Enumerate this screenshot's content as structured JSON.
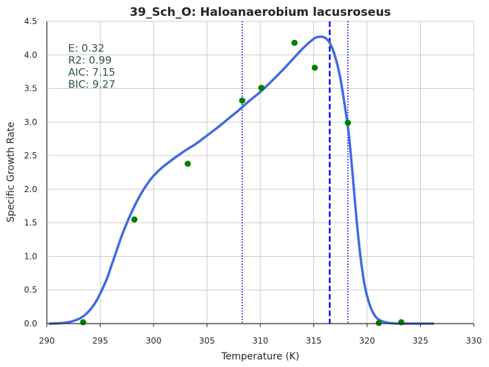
{
  "chart_data": {
    "type": "scatter",
    "title": "39_Sch_O: Haloanaerobium lacusroseus",
    "xlabel": "Temperature (K)",
    "ylabel": "Specific Growth Rate",
    "xlim": [
      290,
      330
    ],
    "ylim": [
      0,
      4.5
    ],
    "xticks": [
      "290",
      "295",
      "300",
      "305",
      "310",
      "315",
      "320",
      "325",
      "330"
    ],
    "yticks": [
      "0.0",
      "0.5",
      "1.0",
      "1.5",
      "2.0",
      "2.5",
      "3.0",
      "3.5",
      "4.0",
      "4.5"
    ],
    "grid": true,
    "stats": [
      "E:  0.32",
      "R2:  0.99",
      "AIC: 7.15",
      "BIC: 9.27"
    ],
    "colors": {
      "fit": "#4169e1",
      "points": "#008000",
      "vlines": "#0000ff",
      "annotation": "#2f4f4f",
      "grid": "#cccccc"
    },
    "observed": {
      "x": [
        293.4,
        298.2,
        303.2,
        308.3,
        310.1,
        313.2,
        315.1,
        318.2,
        321.1,
        323.2
      ],
      "y": [
        0.02,
        1.55,
        2.38,
        3.32,
        3.51,
        4.18,
        3.81,
        2.99,
        0.01,
        0.02
      ]
    },
    "fit_curve": {
      "x": [
        290.3,
        291.5,
        292.5,
        293.5,
        294.5,
        295.5,
        296.0,
        296.5,
        297.0,
        297.5,
        298.0,
        298.5,
        299.0,
        299.5,
        300.0,
        300.5,
        301.0,
        302.0,
        303.0,
        304.0,
        305.0,
        306.0,
        307.0,
        308.0,
        309.0,
        310.0,
        311.0,
        312.0,
        313.0,
        314.0,
        315.0,
        315.5,
        316.0,
        316.5,
        317.0,
        317.5,
        318.0,
        318.3,
        318.6,
        318.9,
        319.2,
        319.5,
        319.8,
        320.2,
        320.6,
        321.0,
        321.5,
        322.0,
        323.0,
        324.0,
        325.0,
        326.2
      ],
      "y": [
        0.0,
        0.01,
        0.04,
        0.12,
        0.3,
        0.62,
        0.84,
        1.07,
        1.3,
        1.5,
        1.68,
        1.84,
        1.98,
        2.1,
        2.2,
        2.28,
        2.35,
        2.47,
        2.58,
        2.68,
        2.8,
        2.92,
        3.05,
        3.18,
        3.32,
        3.45,
        3.6,
        3.76,
        3.93,
        4.1,
        4.24,
        4.27,
        4.26,
        4.18,
        3.98,
        3.65,
        3.15,
        2.8,
        2.3,
        1.75,
        1.25,
        0.85,
        0.55,
        0.3,
        0.15,
        0.07,
        0.03,
        0.01,
        0.0,
        0.0,
        0.0,
        0.0
      ]
    },
    "vlines": [
      {
        "x": 308.3,
        "style": "dotted"
      },
      {
        "x": 316.5,
        "style": "dashed"
      },
      {
        "x": 318.2,
        "style": "dotted"
      }
    ]
  }
}
